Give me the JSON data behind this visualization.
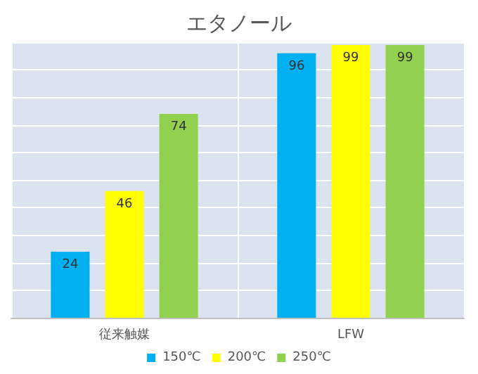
{
  "chart_data": {
    "type": "bar",
    "title": "エタノール",
    "categories": [
      "従来触媒",
      "LFW"
    ],
    "series": [
      {
        "name": "150℃",
        "color": "#00b0f0",
        "values": [
          24,
          96
        ]
      },
      {
        "name": "200℃",
        "color": "#ffff00",
        "values": [
          46,
          99
        ]
      },
      {
        "name": "250℃",
        "color": "#92d050",
        "values": [
          74,
          99
        ]
      }
    ],
    "ylim": [
      0,
      100
    ],
    "yticks": [
      {
        "value": 0,
        "label": null
      },
      {
        "value": 10,
        "label": null
      },
      {
        "value": 20,
        "label": null
      },
      {
        "value": 30,
        "label": null
      },
      {
        "value": 40,
        "label": null
      },
      {
        "value": 50,
        "label": null
      },
      {
        "value": 60,
        "label": null
      },
      {
        "value": 70,
        "label": null
      },
      {
        "value": 80,
        "label": null
      },
      {
        "value": 90,
        "label": null
      },
      {
        "value": 100,
        "label": null
      }
    ],
    "tick_labels": "x",
    "grid": "y",
    "legend": "bottom",
    "data_labels": true
  }
}
